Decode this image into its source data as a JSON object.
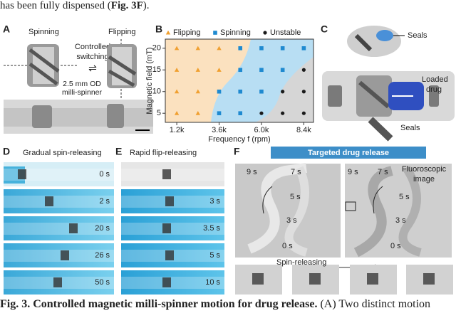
{
  "intro": [
    "has been fully dispensed (",
    "Fig. 3F",
    ")."
  ],
  "panel_a": {
    "label": "A",
    "spinning": "Spinning",
    "flipping": "Flipping",
    "switch": [
      "Controlled",
      "switching"
    ],
    "size": [
      "2.5 mm OD",
      "milli-spinner"
    ]
  },
  "chart_data": {
    "type": "scatter",
    "label": "B",
    "xlabel": "Frequency f (rpm)",
    "ylabel": "Magnetic field (mT)",
    "xlim": [
      550,
      8950
    ],
    "ylim": [
      2.9,
      22.1
    ],
    "xticks": [
      {
        "value": 1200,
        "label": "1.2k"
      },
      {
        "value": 3600,
        "label": "3.6k"
      },
      {
        "value": 6000,
        "label": "6.0k"
      },
      {
        "value": 8400,
        "label": "8.4k"
      }
    ],
    "yticks": [
      5,
      10,
      15,
      20
    ],
    "series": [
      {
        "name": "Flipping",
        "color": "#f0a030",
        "marker": "triangle",
        "x": [
          1200,
          2400,
          3600,
          1200,
          2400,
          3600,
          1200,
          2400,
          1200,
          2400
        ],
        "y": [
          20,
          20,
          20,
          15,
          15,
          15,
          10,
          10,
          5,
          5
        ]
      },
      {
        "name": "Spinning",
        "color": "#1f8ad0",
        "marker": "square",
        "x": [
          4800,
          6000,
          7200,
          8400,
          4800,
          6000,
          7200,
          3600,
          4800,
          6000,
          3600,
          4800
        ],
        "y": [
          20,
          20,
          20,
          20,
          15,
          15,
          15,
          10,
          10,
          10,
          5,
          5
        ]
      },
      {
        "name": "Unstable",
        "color": "#1a1a1a",
        "marker": "circle",
        "x": [
          8400,
          7200,
          8400,
          6000,
          7200,
          8400
        ],
        "y": [
          15,
          10,
          10,
          5,
          5,
          5
        ]
      }
    ]
  },
  "panel_c": {
    "label": "C",
    "seals_top": "Seals",
    "drug": [
      "Loaded",
      "drug"
    ],
    "seals_bottom": "Seals"
  },
  "panel_d": {
    "label": "D",
    "title": "Gradual spin-releasing",
    "times": [
      "0 s",
      "2 s",
      "20 s",
      "26 s",
      "50 s"
    ]
  },
  "panel_e": {
    "label": "E",
    "title": "Rapid flip-releasing",
    "times": [
      null,
      "3 s",
      "3.5 s",
      "5 s",
      "10 s"
    ]
  },
  "panel_f": {
    "label": "F",
    "title": "Targeted drug release",
    "left_times": [
      "9 s",
      "7 s",
      "5 s",
      "3 s",
      "0 s"
    ],
    "right_times": [
      "9 s",
      "7 s",
      "5 s",
      "3 s",
      "0 s"
    ],
    "fluoro": [
      "Fluoroscopic",
      "image"
    ],
    "spin": "Spin-releasing"
  },
  "caption": {
    "title": "Fig. 3. Controlled magnetic milli-spinner motion for drug release.",
    "text": "(A) Two distinct motion"
  }
}
